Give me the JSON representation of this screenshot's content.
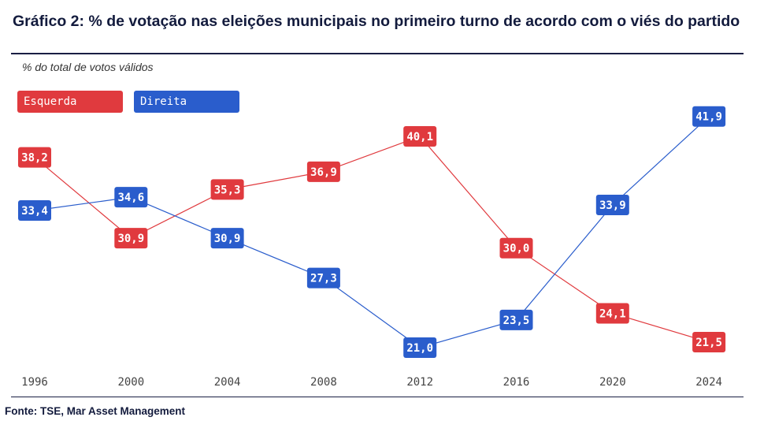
{
  "header": {
    "title": "Gráfico 2: % de votação nas eleições municipais no primeiro turno de acordo com o viés do partido",
    "subtitle": "% do total de votos válidos"
  },
  "footer": {
    "source": "Fonte: TSE, Mar Asset Management"
  },
  "colors": {
    "esquerda": "#e03a3e",
    "direita": "#2a5dcc"
  },
  "chart_data": {
    "type": "line",
    "title": "Gráfico 2: % de votação nas eleições municipais no primeiro turno de acordo com o viés do partido",
    "ylabel": "% do total de votos válidos",
    "xlabel": "",
    "categories": [
      "1996",
      "2000",
      "2004",
      "2008",
      "2012",
      "2016",
      "2020",
      "2024"
    ],
    "series": [
      {
        "name": "Esquerda",
        "color": "#e03a3e",
        "values": [
          38.2,
          30.9,
          35.3,
          36.9,
          40.1,
          30.0,
          24.1,
          21.5
        ],
        "labels": [
          "38,2",
          "30,9",
          "35,3",
          "36,9",
          "40,1",
          "30,0",
          "24,1",
          "21,5"
        ]
      },
      {
        "name": "Direita",
        "color": "#2a5dcc",
        "values": [
          33.4,
          34.6,
          30.9,
          27.3,
          21.0,
          23.5,
          33.9,
          41.9
        ],
        "labels": [
          "33,4",
          "34,6",
          "30,9",
          "27,3",
          "21,0",
          "23,5",
          "33,9",
          "41,9"
        ]
      }
    ],
    "ylim": [
      19,
      43
    ],
    "grid": false,
    "legend": "top-left"
  }
}
